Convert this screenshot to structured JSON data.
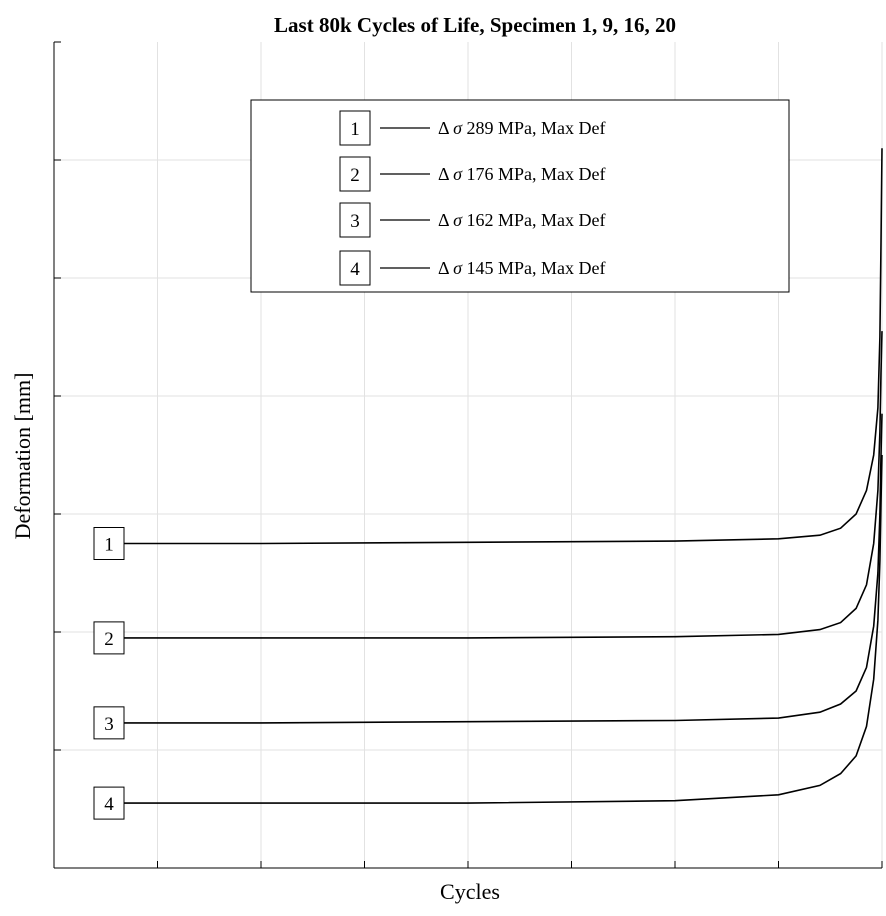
{
  "chart_data": {
    "type": "line",
    "title": "Last 80k Cycles of Life, Specimen 1, 9, 16, 20",
    "xlabel": "Cycles",
    "ylabel": "Deformation [mm]",
    "xlim": [
      0,
      80000
    ],
    "ylim": [
      0,
      7
    ],
    "grid": true,
    "x_tick_labels_shown": false,
    "y_tick_labels_shown": false,
    "legend_placement": "top-center",
    "series": [
      {
        "tag": "1",
        "legend_prefix": "Δ",
        "legend_symbol": "σ",
        "legend_suffix": "289 MPa, Max Def",
        "x": [
          6000,
          20000,
          40000,
          60000,
          70000,
          74000,
          76000,
          77500,
          78500,
          79200,
          79600,
          79800,
          79900,
          80000
        ],
        "y": [
          2.75,
          2.75,
          2.76,
          2.77,
          2.79,
          2.82,
          2.88,
          3.0,
          3.2,
          3.5,
          3.9,
          4.5,
          5.3,
          6.1
        ]
      },
      {
        "tag": "2",
        "legend_prefix": "Δ",
        "legend_symbol": "σ",
        "legend_suffix": "176 MPa, Max Def",
        "x": [
          6000,
          20000,
          40000,
          60000,
          70000,
          74000,
          76000,
          77500,
          78500,
          79200,
          79600,
          79800,
          79900,
          80000
        ],
        "y": [
          1.95,
          1.95,
          1.95,
          1.96,
          1.98,
          2.02,
          2.08,
          2.2,
          2.4,
          2.75,
          3.2,
          3.7,
          4.2,
          4.55
        ]
      },
      {
        "tag": "3",
        "legend_prefix": "Δ",
        "legend_symbol": "σ",
        "legend_suffix": "162 MPa, Max Def",
        "x": [
          6000,
          20000,
          40000,
          60000,
          70000,
          74000,
          76000,
          77500,
          78500,
          79200,
          79600,
          79800,
          79900,
          80000
        ],
        "y": [
          1.23,
          1.23,
          1.24,
          1.25,
          1.27,
          1.32,
          1.39,
          1.5,
          1.7,
          2.05,
          2.5,
          3.0,
          3.5,
          3.85
        ]
      },
      {
        "tag": "4",
        "legend_prefix": "Δ",
        "legend_symbol": "σ",
        "legend_suffix": "145 MPa, Max Def",
        "x": [
          6000,
          20000,
          40000,
          60000,
          70000,
          74000,
          76000,
          77500,
          78500,
          79200,
          79600,
          79800,
          79900,
          80000
        ],
        "y": [
          0.55,
          0.55,
          0.55,
          0.57,
          0.62,
          0.7,
          0.8,
          0.95,
          1.2,
          1.6,
          2.1,
          2.6,
          3.1,
          3.5
        ]
      }
    ]
  }
}
